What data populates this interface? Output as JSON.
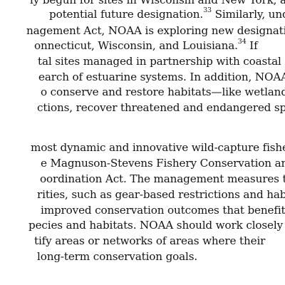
{
  "paragraph_1": {
    "lines": [
      {
        "text": "ly begun for sites in Wisconsin and New York, and"
      },
      {
        "text": "potential future designation.",
        "sup": "33",
        "after": " Similarly, under"
      },
      {
        "text": "nagement Act, NOAA is exploring new designations"
      },
      {
        "text": "onnecticut, Wisconsin, and Louisiana.",
        "sup": "34",
        "after": " If"
      },
      {
        "text": "tal sites managed in partnership with coastal states"
      },
      {
        "text": "earch of estuarine systems. In addition, NOAA’s"
      },
      {
        "text": "o conserve and restore habitats—like wetlands,"
      },
      {
        "text": "ctions, recover threatened and endangered species,"
      }
    ]
  },
  "paragraph_2": {
    "lines": [
      {
        "text": "most dynamic and innovative wild-capture fishery"
      },
      {
        "text": "e Magnuson-Stevens Fishery Conservation and"
      },
      {
        "text": "oordination Act. The management measures that"
      },
      {
        "text": "rities, such as gear-based restrictions and habitat-"
      },
      {
        "text": "improved conservation outcomes that benefit the"
      },
      {
        "text": "pecies and habitats. NOAA should work closely with"
      },
      {
        "text": "tify areas or networks of areas where their"
      },
      {
        "text": "long-term conservation goals."
      }
    ]
  }
}
